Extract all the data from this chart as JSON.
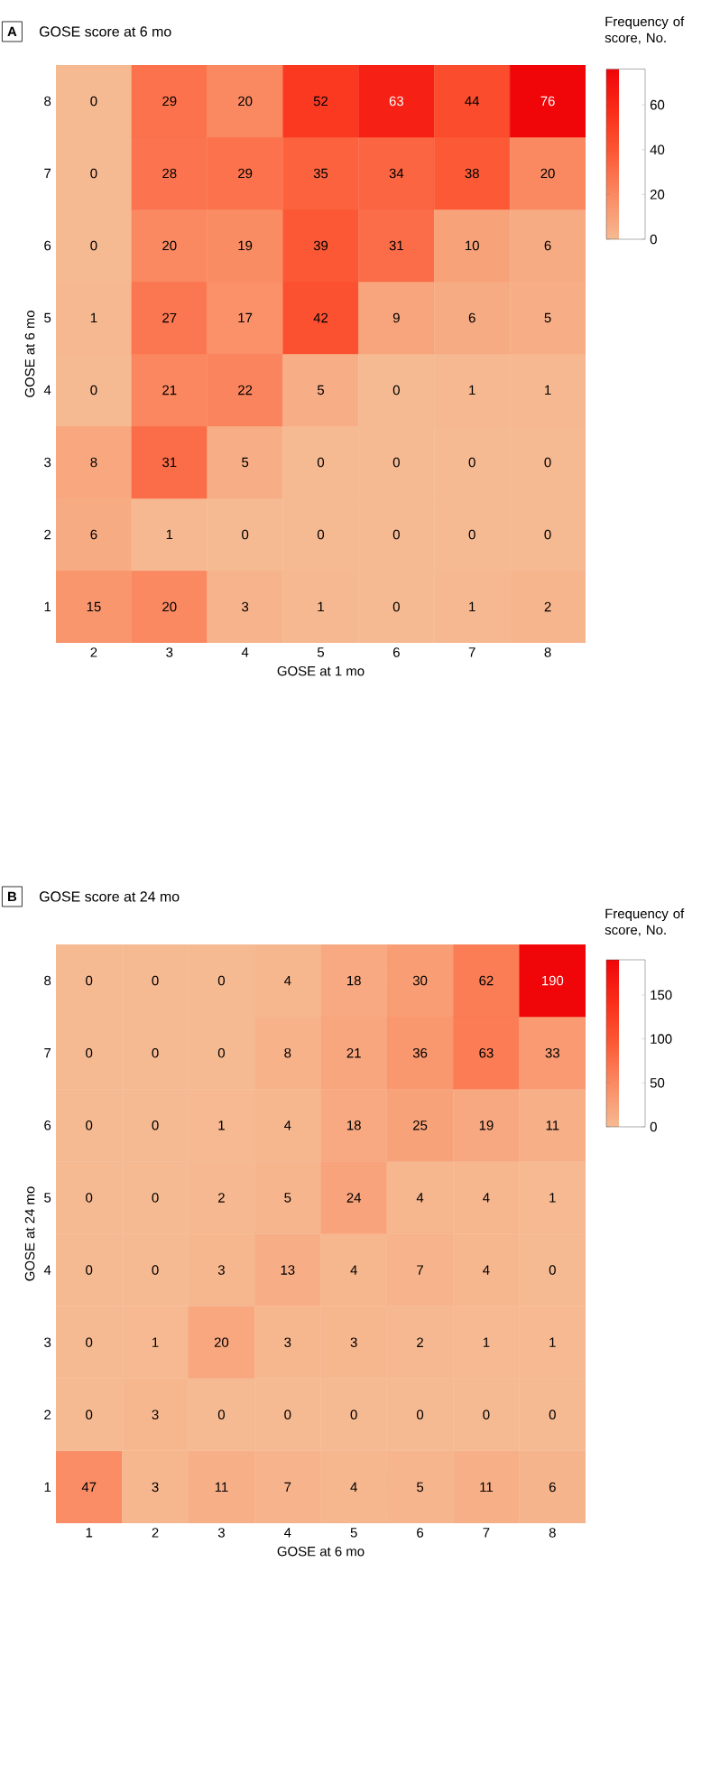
{
  "chart_data": [
    {
      "type": "heatmap",
      "title": "GOSE score at 6 mo",
      "annotations": [
        "A"
      ],
      "xlabel": "GOSE at 1 mo",
      "ylabel": "GOSE at 6 mo",
      "clabel": "Frequency of score, No.",
      "categories": [
        "2",
        "3",
        "4",
        "5",
        "6",
        "7",
        "8"
      ],
      "y_categories": [
        "8",
        "7",
        "6",
        "5",
        "4",
        "3",
        "2",
        "1"
      ],
      "cells": [
        [
          0,
          29,
          20,
          52,
          63,
          44,
          76
        ],
        [
          0,
          28,
          29,
          35,
          34,
          38,
          20
        ],
        [
          0,
          20,
          19,
          39,
          31,
          10,
          6
        ],
        [
          1,
          27,
          17,
          42,
          9,
          6,
          5
        ],
        [
          0,
          21,
          22,
          5,
          0,
          1,
          1
        ],
        [
          8,
          31,
          5,
          0,
          0,
          0,
          0
        ],
        [
          6,
          1,
          0,
          0,
          0,
          0,
          0
        ],
        [
          15,
          20,
          3,
          1,
          0,
          1,
          2
        ]
      ],
      "clim": [
        0,
        76
      ],
      "cticks": [
        0,
        20,
        40,
        60
      ],
      "data_labels": true
    },
    {
      "type": "heatmap",
      "title": "GOSE score at 24 mo",
      "annotations": [
        "B"
      ],
      "xlabel": "GOSE at 6 mo",
      "ylabel": "GOSE at 24 mo",
      "clabel": "Frequency of score, No.",
      "categories": [
        "1",
        "2",
        "3",
        "4",
        "5",
        "6",
        "7",
        "8"
      ],
      "y_categories": [
        "8",
        "7",
        "6",
        "5",
        "4",
        "3",
        "2",
        "1"
      ],
      "cells": [
        [
          0,
          0,
          0,
          4,
          18,
          30,
          62,
          190
        ],
        [
          0,
          0,
          0,
          8,
          21,
          36,
          63,
          33
        ],
        [
          0,
          0,
          1,
          4,
          18,
          25,
          19,
          11
        ],
        [
          0,
          0,
          2,
          5,
          24,
          4,
          4,
          1
        ],
        [
          0,
          0,
          3,
          13,
          4,
          7,
          4,
          0
        ],
        [
          0,
          1,
          20,
          3,
          3,
          2,
          1,
          1
        ],
        [
          0,
          3,
          0,
          0,
          0,
          0,
          0,
          0
        ],
        [
          47,
          3,
          11,
          7,
          4,
          5,
          11,
          6
        ]
      ],
      "clim": [
        0,
        190
      ],
      "cticks": [
        0,
        50,
        100,
        150
      ],
      "data_labels": true
    }
  ]
}
